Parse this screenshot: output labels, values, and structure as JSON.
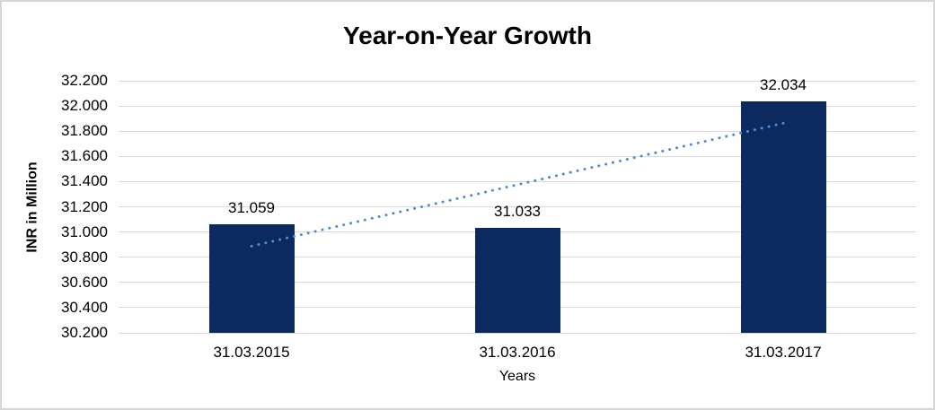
{
  "chart_data": {
    "type": "bar",
    "title": "Year-on-Year Growth",
    "xlabel": "Years",
    "ylabel": "INR in Million",
    "categories": [
      "31.03.2015",
      "31.03.2016",
      "31.03.2017"
    ],
    "values": [
      31.059,
      31.033,
      32.034
    ],
    "data_labels": [
      "31.059",
      "31.033",
      "32.034"
    ],
    "y_ticks": [
      "32.200",
      "32.000",
      "31.800",
      "31.600",
      "31.400",
      "31.200",
      "31.000",
      "30.800",
      "30.600",
      "30.400",
      "30.200"
    ],
    "ylim": [
      30.2,
      32.2
    ],
    "grid": true,
    "legend": false,
    "trendline": {
      "type": "linear",
      "style": "dotted"
    },
    "colors": {
      "bar": "#0d2a60",
      "trendline": "#4f8bd5",
      "gridline": "#d9d9d9",
      "text": "#000000",
      "border": "#d6d6d6",
      "background": "#ffffff"
    }
  }
}
